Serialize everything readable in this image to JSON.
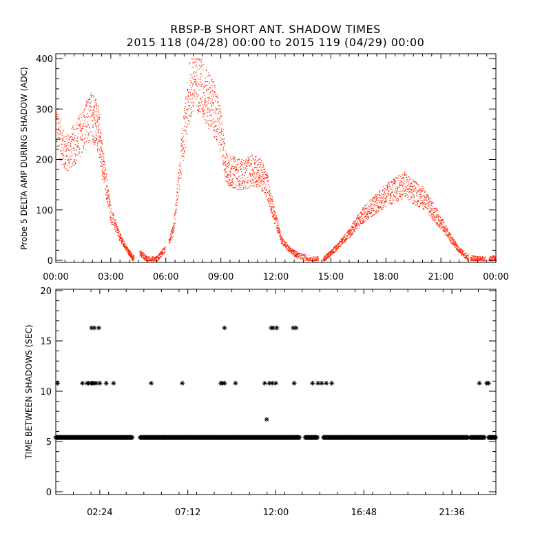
{
  "title": {
    "line1": "RBSP-B SHORT ANT. SHADOW TIMES",
    "line2": "2015 118 (04/28) 00:00 to 2015 119 (04/29) 00:00"
  },
  "colors": {
    "top_series": "#ff2000",
    "bottom_series": "#000000"
  },
  "chart_data": [
    {
      "type": "scatter",
      "ylabel": "Probe 5 DELTA AMP DURING SHADOW (ADC)",
      "xlabel": "",
      "xlim": [
        0,
        24
      ],
      "ylim": [
        0,
        400
      ],
      "x_ticks": [
        "00:00",
        "03:00",
        "06:00",
        "09:00",
        "12:00",
        "15:00",
        "18:00",
        "21:00",
        "00:00"
      ],
      "y_ticks": [
        "0",
        "100",
        "200",
        "300",
        "400"
      ],
      "series": [
        {
          "color": "#ff2000",
          "x": [
            0.0,
            0.5,
            1.0,
            1.5,
            2.0,
            2.3,
            2.6,
            3.0,
            3.5,
            3.9,
            4.2,
            4.6,
            5.0,
            5.5,
            6.0,
            6.4,
            6.9,
            7.3,
            7.7,
            8.1,
            8.5,
            8.9,
            9.3,
            9.7,
            10.2,
            10.7,
            11.1,
            11.5,
            11.9,
            12.3,
            12.8,
            13.2,
            14.0,
            14.6,
            15.0,
            15.5,
            16.0,
            16.5,
            17.0,
            17.5,
            18.0,
            18.5,
            19.0,
            19.5,
            20.0,
            20.5,
            21.0,
            21.5,
            22.0,
            22.5,
            23.0,
            23.5,
            24.0
          ],
          "y": [
            270,
            210,
            230,
            260,
            290,
            260,
            180,
            90,
            45,
            20,
            5,
            15,
            2,
            3,
            25,
            60,
            230,
            340,
            360,
            330,
            310,
            270,
            180,
            175,
            170,
            180,
            175,
            150,
            90,
            40,
            20,
            10,
            2,
            3,
            15,
            35,
            55,
            80,
            100,
            115,
            130,
            140,
            150,
            135,
            125,
            100,
            75,
            45,
            20,
            5,
            3,
            2,
            5
          ]
        }
      ]
    },
    {
      "type": "scatter",
      "ylabel": "TIME BETWEEN SHADOWS (SEC)",
      "xlabel": "",
      "xlim": [
        0,
        24
      ],
      "ylim": [
        0,
        20
      ],
      "x_ticks": [
        "02:24",
        "07:12",
        "12:00",
        "16:48",
        "21:36"
      ],
      "y_ticks": [
        "0",
        "5",
        "10",
        "15",
        "20"
      ],
      "series": [
        {
          "color": "#000000",
          "marker": "asterisk",
          "x": [
            0.1,
            1.45,
            1.7,
            1.8,
            1.95,
            2.0,
            2.1,
            2.2,
            2.4,
            2.75,
            3.15,
            5.2,
            6.9,
            9.0,
            9.1,
            9.2,
            9.8,
            11.4,
            11.65,
            11.8,
            12.0,
            13.0,
            14.0,
            14.3,
            14.5,
            14.75,
            15.05,
            23.1,
            23.5,
            23.6,
            1.95,
            2.1,
            2.35,
            9.2,
            11.75,
            11.85,
            12.05,
            12.95,
            13.1,
            11.5
          ],
          "y": [
            10.8,
            10.8,
            10.8,
            10.8,
            10.8,
            10.8,
            10.8,
            10.8,
            10.8,
            10.8,
            10.8,
            10.8,
            10.8,
            10.8,
            10.8,
            10.8,
            10.8,
            10.8,
            10.8,
            10.8,
            10.8,
            10.8,
            10.8,
            10.8,
            10.8,
            10.8,
            10.8,
            10.8,
            10.8,
            10.8,
            16.3,
            16.3,
            16.3,
            16.3,
            16.3,
            16.3,
            16.3,
            16.3,
            16.3,
            7.2
          ]
        },
        {
          "color": "#000000",
          "marker": "asterisk",
          "y_constant": 5.4,
          "x_ranges": [
            [
              0.0,
              4.2
            ],
            [
              4.6,
              5.9
            ],
            [
              5.9,
              13.3
            ],
            [
              13.6,
              14.3
            ],
            [
              14.6,
              22.5
            ],
            [
              22.6,
              23.4
            ],
            [
              23.6,
              24.0
            ]
          ]
        }
      ]
    }
  ]
}
